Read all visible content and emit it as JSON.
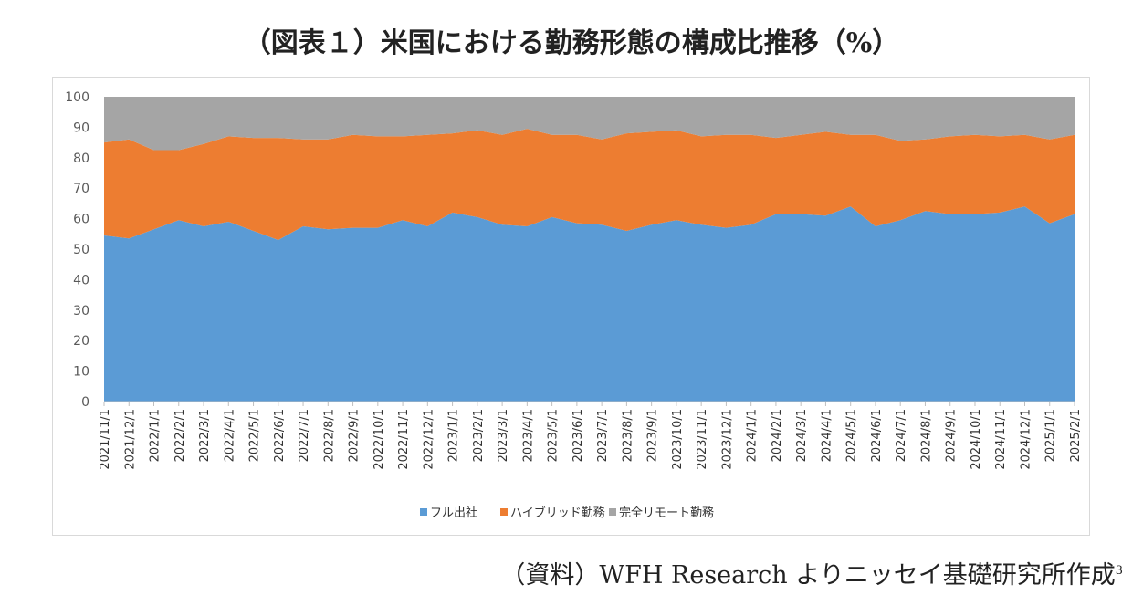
{
  "title": "（図表１）米国における勤務形態の構成比推移（%）",
  "source": {
    "text": "（資料）WFH Research よりニッセイ基礎研究所作成",
    "footnote": "3"
  },
  "colors": {
    "full_office": "#5b9bd5",
    "hybrid": "#ed7d31",
    "full_remote": "#a5a5a5",
    "axis": "#bfbfbf"
  },
  "chart_data": {
    "type": "area",
    "stacked": true,
    "title": "（図表１）米国における勤務形態の構成比推移（%）",
    "xlabel": "",
    "ylabel": "",
    "ylim": [
      0,
      100
    ],
    "yticks": [
      0,
      10,
      20,
      30,
      40,
      50,
      60,
      70,
      80,
      90,
      100
    ],
    "legend_position": "bottom",
    "categories": [
      "2021/11/1",
      "2021/12/1",
      "2022/1/1",
      "2022/2/1",
      "2022/3/1",
      "2022/4/1",
      "2022/5/1",
      "2022/6/1",
      "2022/7/1",
      "2022/8/1",
      "2022/9/1",
      "2022/10/1",
      "2022/11/1",
      "2022/12/1",
      "2023/1/1",
      "2023/2/1",
      "2023/3/1",
      "2023/4/1",
      "2023/5/1",
      "2023/6/1",
      "2023/7/1",
      "2023/8/1",
      "2023/9/1",
      "2023/10/1",
      "2023/11/1",
      "2023/12/1",
      "2024/1/1",
      "2024/2/1",
      "2024/3/1",
      "2024/4/1",
      "2024/5/1",
      "2024/6/1",
      "2024/7/1",
      "2024/8/1",
      "2024/9/1",
      "2024/10/1",
      "2024/11/1",
      "2024/12/1",
      "2025/1/1",
      "2025/2/1"
    ],
    "series": [
      {
        "name": "フル出社",
        "values": [
          54.5,
          53.5,
          56.5,
          59.5,
          57.5,
          59.0,
          56.0,
          53.0,
          57.5,
          56.5,
          57.0,
          57.0,
          59.5,
          57.5,
          62.0,
          60.5,
          58.0,
          57.5,
          60.5,
          58.5,
          58.0,
          56.0,
          58.0,
          59.5,
          58.0,
          57.0,
          58.0,
          61.5,
          61.5,
          61.0,
          64.0,
          57.5,
          59.5,
          62.5,
          61.5,
          61.5,
          62.0,
          64.0,
          58.5,
          61.5
        ]
      },
      {
        "name": "ハイブリッド勤務",
        "values": [
          30.5,
          32.5,
          26.0,
          23.0,
          27.0,
          28.0,
          30.5,
          33.5,
          28.5,
          29.5,
          30.5,
          30.0,
          27.5,
          30.0,
          26.0,
          28.5,
          29.5,
          32.0,
          27.0,
          29.0,
          28.0,
          32.0,
          30.5,
          29.5,
          29.0,
          30.5,
          29.5,
          25.0,
          26.0,
          27.5,
          23.5,
          30.0,
          26.0,
          23.5,
          25.5,
          26.0,
          25.0,
          23.5,
          27.5,
          26.0
        ]
      },
      {
        "name": "完全リモート勤務",
        "values": [
          15.0,
          14.0,
          17.5,
          17.5,
          15.5,
          13.0,
          13.5,
          13.5,
          14.0,
          14.0,
          12.5,
          13.0,
          13.0,
          12.5,
          12.0,
          11.0,
          12.5,
          10.5,
          12.5,
          12.5,
          14.0,
          12.0,
          11.5,
          11.0,
          13.0,
          12.5,
          12.5,
          13.5,
          12.5,
          11.5,
          12.5,
          12.5,
          14.5,
          14.0,
          13.0,
          12.5,
          13.0,
          12.5,
          14.0,
          12.5
        ]
      }
    ]
  }
}
